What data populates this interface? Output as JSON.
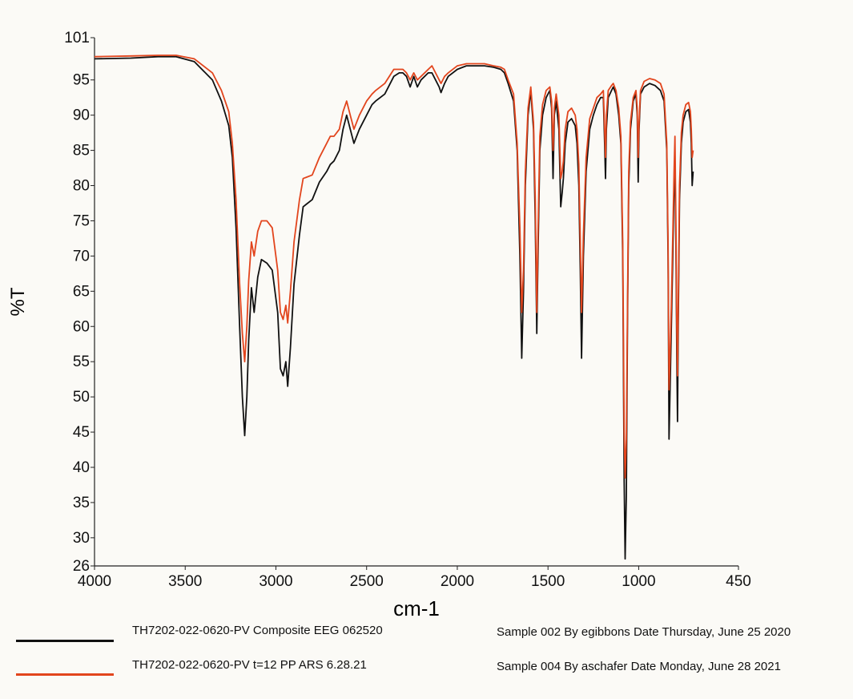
{
  "chart_data": {
    "type": "line",
    "xlabel": "cm-1",
    "ylabel": "%T",
    "xlim": [
      4000,
      450
    ],
    "ylim": [
      26,
      101
    ],
    "x_ticks": [
      4000,
      3500,
      3000,
      2500,
      2000,
      1500,
      1000,
      450
    ],
    "y_ticks": [
      26,
      30,
      35,
      40,
      45,
      50,
      55,
      60,
      65,
      70,
      75,
      80,
      85,
      90,
      95,
      101
    ],
    "grid": false,
    "legend_position": "bottom",
    "series": [
      {
        "name": "TH7202-022-0620-PV Composite EEG 062520",
        "sample": "Sample 002 By egibbons Date Thursday, June 25 2020",
        "color": "#111111",
        "points": [
          [
            4000,
            98.0
          ],
          [
            3800,
            98.1
          ],
          [
            3650,
            98.3
          ],
          [
            3550,
            98.3
          ],
          [
            3450,
            97.6
          ],
          [
            3350,
            95.0
          ],
          [
            3300,
            92.0
          ],
          [
            3260,
            88.5
          ],
          [
            3240,
            84.0
          ],
          [
            3220,
            74.0
          ],
          [
            3200,
            60.0
          ],
          [
            3185,
            50.0
          ],
          [
            3172,
            44.5
          ],
          [
            3160,
            50.0
          ],
          [
            3150,
            58.0
          ],
          [
            3135,
            65.5
          ],
          [
            3120,
            62.0
          ],
          [
            3100,
            67.0
          ],
          [
            3080,
            69.5
          ],
          [
            3050,
            69.0
          ],
          [
            3020,
            68.0
          ],
          [
            2990,
            62.0
          ],
          [
            2975,
            54.0
          ],
          [
            2960,
            53.0
          ],
          [
            2945,
            55.0
          ],
          [
            2935,
            51.5
          ],
          [
            2920,
            57.0
          ],
          [
            2900,
            66.0
          ],
          [
            2870,
            73.0
          ],
          [
            2850,
            77.0
          ],
          [
            2800,
            78.0
          ],
          [
            2760,
            80.5
          ],
          [
            2720,
            82.0
          ],
          [
            2700,
            83.0
          ],
          [
            2680,
            83.5
          ],
          [
            2650,
            85.0
          ],
          [
            2630,
            88.0
          ],
          [
            2610,
            90.0
          ],
          [
            2590,
            88.0
          ],
          [
            2570,
            86.0
          ],
          [
            2540,
            88.0
          ],
          [
            2500,
            90.0
          ],
          [
            2470,
            91.5
          ],
          [
            2450,
            92.0
          ],
          [
            2400,
            93.0
          ],
          [
            2350,
            95.5
          ],
          [
            2320,
            96.0
          ],
          [
            2300,
            96.0
          ],
          [
            2280,
            95.5
          ],
          [
            2260,
            94.0
          ],
          [
            2240,
            95.5
          ],
          [
            2220,
            94.0
          ],
          [
            2200,
            95.0
          ],
          [
            2160,
            96.0
          ],
          [
            2140,
            96.0
          ],
          [
            2120,
            95.0
          ],
          [
            2100,
            94.0
          ],
          [
            2090,
            93.2
          ],
          [
            2070,
            94.5
          ],
          [
            2050,
            95.5
          ],
          [
            2000,
            96.5
          ],
          [
            1950,
            97.0
          ],
          [
            1900,
            97.0
          ],
          [
            1850,
            97.0
          ],
          [
            1800,
            96.8
          ],
          [
            1760,
            96.5
          ],
          [
            1740,
            96.0
          ],
          [
            1720,
            94.5
          ],
          [
            1690,
            92.0
          ],
          [
            1670,
            85.0
          ],
          [
            1655,
            70.0
          ],
          [
            1645,
            55.5
          ],
          [
            1635,
            65.0
          ],
          [
            1625,
            80.0
          ],
          [
            1610,
            90.0
          ],
          [
            1595,
            93.5
          ],
          [
            1580,
            88.0
          ],
          [
            1570,
            75.0
          ],
          [
            1562,
            59.0
          ],
          [
            1555,
            70.0
          ],
          [
            1545,
            85.0
          ],
          [
            1530,
            90.0
          ],
          [
            1510,
            92.5
          ],
          [
            1490,
            93.5
          ],
          [
            1480,
            91.0
          ],
          [
            1472,
            81.0
          ],
          [
            1465,
            90.0
          ],
          [
            1455,
            92.0
          ],
          [
            1440,
            88.0
          ],
          [
            1430,
            77.0
          ],
          [
            1422,
            79.0
          ],
          [
            1415,
            81.0
          ],
          [
            1405,
            86.0
          ],
          [
            1390,
            89.0
          ],
          [
            1370,
            89.5
          ],
          [
            1350,
            88.5
          ],
          [
            1340,
            86.0
          ],
          [
            1330,
            80.0
          ],
          [
            1322,
            68.0
          ],
          [
            1315,
            55.5
          ],
          [
            1305,
            70.0
          ],
          [
            1290,
            82.0
          ],
          [
            1270,
            88.0
          ],
          [
            1250,
            90.0
          ],
          [
            1230,
            91.5
          ],
          [
            1210,
            92.5
          ],
          [
            1195,
            92.5
          ],
          [
            1188,
            86.0
          ],
          [
            1183,
            81.0
          ],
          [
            1178,
            88.0
          ],
          [
            1168,
            92.5
          ],
          [
            1150,
            93.5
          ],
          [
            1140,
            94.0
          ],
          [
            1125,
            93.0
          ],
          [
            1110,
            90.0
          ],
          [
            1098,
            86.0
          ],
          [
            1088,
            70.0
          ],
          [
            1080,
            38.0
          ],
          [
            1075,
            27.0
          ],
          [
            1068,
            36.0
          ],
          [
            1062,
            60.0
          ],
          [
            1055,
            80.0
          ],
          [
            1045,
            88.0
          ],
          [
            1030,
            92.0
          ],
          [
            1015,
            93.0
          ],
          [
            1008,
            90.0
          ],
          [
            1003,
            80.5
          ],
          [
            998,
            88.0
          ],
          [
            990,
            93.0
          ],
          [
            970,
            94.0
          ],
          [
            940,
            94.5
          ],
          [
            910,
            94.2
          ],
          [
            880,
            93.5
          ],
          [
            860,
            92.0
          ],
          [
            845,
            85.0
          ],
          [
            838,
            70.0
          ],
          [
            833,
            44.0
          ],
          [
            828,
            50.0
          ],
          [
            820,
            60.0
          ],
          [
            812,
            70.0
          ],
          [
            805,
            80.0
          ],
          [
            800,
            83.0
          ],
          [
            795,
            72.0
          ],
          [
            790,
            56.0
          ],
          [
            786,
            46.5
          ],
          [
            782,
            60.0
          ],
          [
            775,
            78.0
          ],
          [
            765,
            86.0
          ],
          [
            755,
            89.0
          ],
          [
            740,
            90.5
          ],
          [
            725,
            90.8
          ],
          [
            715,
            89.0
          ],
          [
            710,
            86.0
          ],
          [
            705,
            80.0
          ],
          [
            700,
            82.0
          ]
        ]
      },
      {
        "name": "TH7202-022-0620-PV t=12 PP ARS 6.28.21",
        "sample": "Sample 004 By aschafer Date Monday, June 28 2021",
        "color": "#e2451d",
        "points": [
          [
            4000,
            98.3
          ],
          [
            3800,
            98.4
          ],
          [
            3650,
            98.5
          ],
          [
            3550,
            98.5
          ],
          [
            3450,
            98.0
          ],
          [
            3350,
            96.0
          ],
          [
            3300,
            93.5
          ],
          [
            3260,
            90.5
          ],
          [
            3240,
            86.0
          ],
          [
            3220,
            78.0
          ],
          [
            3200,
            66.0
          ],
          [
            3185,
            59.0
          ],
          [
            3172,
            55.0
          ],
          [
            3160,
            60.0
          ],
          [
            3150,
            66.5
          ],
          [
            3135,
            72.0
          ],
          [
            3120,
            70.0
          ],
          [
            3100,
            73.5
          ],
          [
            3080,
            75.0
          ],
          [
            3050,
            75.0
          ],
          [
            3020,
            74.0
          ],
          [
            2990,
            68.0
          ],
          [
            2975,
            62.0
          ],
          [
            2960,
            61.0
          ],
          [
            2945,
            63.0
          ],
          [
            2935,
            60.5
          ],
          [
            2920,
            65.0
          ],
          [
            2900,
            72.0
          ],
          [
            2870,
            78.0
          ],
          [
            2850,
            81.0
          ],
          [
            2800,
            81.5
          ],
          [
            2760,
            84.0
          ],
          [
            2720,
            86.0
          ],
          [
            2700,
            87.0
          ],
          [
            2680,
            87.0
          ],
          [
            2650,
            88.0
          ],
          [
            2630,
            90.5
          ],
          [
            2610,
            92.0
          ],
          [
            2590,
            90.0
          ],
          [
            2570,
            88.0
          ],
          [
            2540,
            90.0
          ],
          [
            2500,
            92.0
          ],
          [
            2470,
            93.0
          ],
          [
            2450,
            93.5
          ],
          [
            2400,
            94.5
          ],
          [
            2350,
            96.5
          ],
          [
            2320,
            96.5
          ],
          [
            2300,
            96.5
          ],
          [
            2280,
            96.0
          ],
          [
            2260,
            95.0
          ],
          [
            2240,
            96.0
          ],
          [
            2220,
            95.0
          ],
          [
            2200,
            95.5
          ],
          [
            2160,
            96.5
          ],
          [
            2140,
            97.0
          ],
          [
            2120,
            96.0
          ],
          [
            2100,
            95.0
          ],
          [
            2090,
            94.5
          ],
          [
            2070,
            95.5
          ],
          [
            2050,
            96.0
          ],
          [
            2000,
            97.0
          ],
          [
            1950,
            97.3
          ],
          [
            1900,
            97.3
          ],
          [
            1850,
            97.3
          ],
          [
            1800,
            97.0
          ],
          [
            1760,
            96.8
          ],
          [
            1740,
            96.5
          ],
          [
            1720,
            95.0
          ],
          [
            1690,
            93.0
          ],
          [
            1670,
            86.0
          ],
          [
            1655,
            74.0
          ],
          [
            1645,
            62.0
          ],
          [
            1635,
            68.0
          ],
          [
            1625,
            82.0
          ],
          [
            1610,
            91.0
          ],
          [
            1595,
            94.0
          ],
          [
            1580,
            89.0
          ],
          [
            1570,
            78.0
          ],
          [
            1562,
            62.0
          ],
          [
            1555,
            73.0
          ],
          [
            1545,
            87.0
          ],
          [
            1530,
            91.5
          ],
          [
            1510,
            93.5
          ],
          [
            1490,
            94.0
          ],
          [
            1480,
            92.0
          ],
          [
            1472,
            85.0
          ],
          [
            1465,
            91.0
          ],
          [
            1455,
            93.0
          ],
          [
            1440,
            90.0
          ],
          [
            1430,
            81.0
          ],
          [
            1422,
            82.0
          ],
          [
            1415,
            83.5
          ],
          [
            1405,
            88.0
          ],
          [
            1390,
            90.5
          ],
          [
            1370,
            91.0
          ],
          [
            1350,
            90.0
          ],
          [
            1340,
            88.0
          ],
          [
            1330,
            83.0
          ],
          [
            1322,
            72.0
          ],
          [
            1315,
            62.0
          ],
          [
            1305,
            73.0
          ],
          [
            1290,
            84.0
          ],
          [
            1270,
            89.5
          ],
          [
            1250,
            91.0
          ],
          [
            1230,
            92.5
          ],
          [
            1210,
            93.0
          ],
          [
            1195,
            93.5
          ],
          [
            1188,
            88.0
          ],
          [
            1183,
            84.0
          ],
          [
            1178,
            90.0
          ],
          [
            1168,
            93.5
          ],
          [
            1150,
            94.2
          ],
          [
            1140,
            94.5
          ],
          [
            1125,
            93.5
          ],
          [
            1110,
            91.0
          ],
          [
            1098,
            87.0
          ],
          [
            1088,
            72.0
          ],
          [
            1080,
            45.0
          ],
          [
            1075,
            38.5
          ],
          [
            1068,
            44.0
          ],
          [
            1062,
            62.0
          ],
          [
            1055,
            82.0
          ],
          [
            1045,
            89.0
          ],
          [
            1030,
            92.5
          ],
          [
            1015,
            93.5
          ],
          [
            1008,
            91.0
          ],
          [
            1003,
            84.0
          ],
          [
            998,
            89.0
          ],
          [
            990,
            93.5
          ],
          [
            970,
            94.8
          ],
          [
            940,
            95.2
          ],
          [
            910,
            95.0
          ],
          [
            880,
            94.5
          ],
          [
            860,
            93.0
          ],
          [
            845,
            86.0
          ],
          [
            838,
            72.0
          ],
          [
            833,
            51.0
          ],
          [
            828,
            55.0
          ],
          [
            820,
            63.0
          ],
          [
            812,
            73.0
          ],
          [
            805,
            82.0
          ],
          [
            800,
            87.0
          ],
          [
            795,
            75.0
          ],
          [
            790,
            60.0
          ],
          [
            786,
            53.0
          ],
          [
            782,
            63.0
          ],
          [
            775,
            80.0
          ],
          [
            765,
            87.5
          ],
          [
            755,
            90.0
          ],
          [
            740,
            91.5
          ],
          [
            725,
            91.8
          ],
          [
            715,
            90.5
          ],
          [
            710,
            88.0
          ],
          [
            705,
            84.0
          ],
          [
            700,
            85.0
          ]
        ]
      }
    ]
  }
}
